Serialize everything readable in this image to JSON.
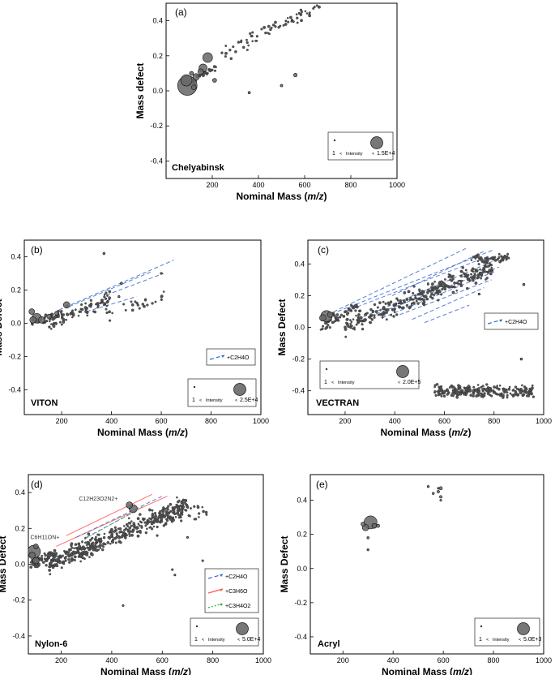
{
  "chart_data": [
    {
      "type": "scatter",
      "panel": "(a)",
      "title": "Chelyabinsk",
      "xlabel": "Nominal Mass (m/z)",
      "ylabel": "Mass defect",
      "xlim": [
        0,
        1000
      ],
      "ylim": [
        -0.5,
        0.5
      ],
      "xticks": [
        200,
        400,
        600,
        800,
        1000
      ],
      "yticks": [
        0.4,
        0.2,
        0.0,
        -0.2,
        -0.4
      ],
      "xtick_labels": [
        "200",
        "400",
        "600",
        "800",
        "1000"
      ],
      "ytick_labels": [
        "0.4",
        "0.2",
        "0.0",
        "-0.2",
        "-0.4"
      ],
      "intensity_legend": {
        "min": "1",
        "max": "1.5E+4",
        "label": "Intensity",
        "lt": "<"
      },
      "clusters": [
        {
          "x": [
            85,
            240
          ],
          "y0": 0.02,
          "slope": 0.0009,
          "spread": 0.035,
          "n": 28
        },
        {
          "x": [
            240,
            670
          ],
          "y0": 0.2,
          "slope": 0.0007,
          "spread": 0.06,
          "n": 70
        }
      ],
      "points": [
        [
          92,
          0.03,
          12
        ],
        [
          88,
          0.06,
          7
        ],
        [
          180,
          0.19,
          6
        ],
        [
          160,
          0.13,
          5
        ],
        [
          130,
          0.08,
          4
        ],
        [
          150,
          0.11,
          3.5
        ],
        [
          210,
          0.06,
          2.5
        ],
        [
          120,
          0.02,
          3
        ],
        [
          560,
          0.09,
          2.2
        ],
        [
          500,
          0.03,
          1.6
        ],
        [
          360,
          -0.01,
          1.5
        ],
        [
          110,
          0.1,
          2.5
        ]
      ],
      "series_lines": []
    },
    {
      "type": "scatter",
      "panel": "(b)",
      "title": "VITON",
      "xlabel": "Nominal Mass (m/z)",
      "ylabel": "Mass Defect",
      "xlim": [
        50,
        1000
      ],
      "ylim": [
        -0.55,
        0.5
      ],
      "xticks": [
        200,
        400,
        600,
        800,
        1000
      ],
      "yticks": [
        0.4,
        0.2,
        0.0,
        -0.2,
        -0.4
      ],
      "xtick_labels": [
        "200",
        "400",
        "600",
        "800",
        "1000"
      ],
      "ytick_labels": [
        "0.4",
        "0.2",
        "0.0",
        "-0.2",
        "-0.4"
      ],
      "series_legend": [
        {
          "name": "+C2H4O",
          "color": "#3a66cc"
        }
      ],
      "intensity_legend": {
        "min": "1",
        "max": "2.5E+4",
        "label": "Intensity",
        "lt": "<"
      },
      "clusters": [
        {
          "x": [
            80,
            200
          ],
          "y0": -0.01,
          "slope": 0.0006,
          "spread": 0.04,
          "n": 30
        },
        {
          "x": [
            150,
            400
          ],
          "y0": 0.0,
          "slope": 0.0006,
          "spread": 0.07,
          "n": 90
        },
        {
          "x": [
            380,
            620
          ],
          "y0": 0.05,
          "slope": 0.0005,
          "spread": 0.05,
          "n": 25
        }
      ],
      "points": [
        [
          100,
          0.03,
          6
        ],
        [
          85,
          0.02,
          4
        ],
        [
          120,
          0.02,
          4
        ],
        [
          80,
          0.07,
          3.5
        ],
        [
          150,
          0.04,
          3
        ],
        [
          220,
          0.11,
          4
        ],
        [
          180,
          0.06,
          2.5
        ],
        [
          370,
          0.42,
          1.4
        ],
        [
          440,
          0.24,
          1.4
        ],
        [
          430,
          0.16,
          1.3
        ],
        [
          600,
          0.3,
          1.3
        ]
      ],
      "series_lines": [
        {
          "color": "#3a66cc",
          "dash": "5,3",
          "from": [
            190,
            0.08
          ],
          "to": [
            650,
            0.38
          ]
        },
        {
          "color": "#3a66cc",
          "dash": "5,3",
          "from": [
            230,
            0.1
          ],
          "to": [
            560,
            0.31
          ]
        },
        {
          "color": "#3a66cc",
          "dash": "5,3",
          "from": [
            300,
            0.07
          ],
          "to": [
            500,
            0.16
          ]
        },
        {
          "color": "#3a66cc",
          "dash": "5,3",
          "from": [
            380,
            0.17
          ],
          "to": [
            610,
            0.3
          ]
        }
      ]
    },
    {
      "type": "scatter",
      "panel": "(c)",
      "title": "VECTRAN",
      "xlabel": "Nominal Mass (m/z)",
      "ylabel": "Mass Defect",
      "xlim": [
        50,
        1000
      ],
      "ylim": [
        -0.55,
        0.55
      ],
      "xticks": [
        200,
        400,
        600,
        800,
        1000
      ],
      "yticks": [
        0.4,
        0.2,
        0.0,
        -0.2,
        -0.4
      ],
      "xtick_labels": [
        "200",
        "400",
        "600",
        "800",
        "1000"
      ],
      "ytick_labels": [
        "0.4",
        "0.2",
        "0.0",
        "-0.2",
        "-0.4"
      ],
      "series_legend": [
        {
          "name": "+C2H4O",
          "color": "#3a66cc"
        }
      ],
      "intensity_legend": {
        "min": "1",
        "max": "2.0E+5",
        "label": "Intensity",
        "lt": "<"
      },
      "clusters": [
        {
          "x": [
            100,
            250
          ],
          "y0": 0.0,
          "slope": 0.0009,
          "spread": 0.05,
          "n": 50
        },
        {
          "x": [
            200,
            800
          ],
          "y0": 0.0,
          "slope": 0.00065,
          "spread": 0.09,
          "n": 300
        },
        {
          "x": [
            700,
            860
          ],
          "y0": 0.43,
          "slope": 0.0001,
          "spread": 0.04,
          "n": 45
        },
        {
          "x": [
            560,
            960
          ],
          "y0": -0.4,
          "slope": -2e-05,
          "spread": 0.05,
          "n": 230
        }
      ],
      "points": [
        [
          125,
          0.07,
          7
        ],
        [
          110,
          0.06,
          4
        ],
        [
          140,
          0.08,
          3.5
        ],
        [
          920,
          0.27,
          1.4
        ],
        [
          910,
          -0.2,
          1.4
        ],
        [
          740,
          0.21,
          1.3
        ]
      ],
      "series_lines": [
        {
          "color": "#3a66cc",
          "dash": "5,3",
          "from": [
            130,
            0.08
          ],
          "to": [
            690,
            0.5
          ]
        },
        {
          "color": "#3a66cc",
          "dash": "5,3",
          "from": [
            170,
            0.1
          ],
          "to": [
            800,
            0.49
          ]
        },
        {
          "color": "#3a66cc",
          "dash": "5,3",
          "from": [
            200,
            0.1
          ],
          "to": [
            780,
            0.45
          ]
        },
        {
          "color": "#3a66cc",
          "dash": "5,3",
          "from": [
            250,
            0.05
          ],
          "to": [
            800,
            0.42
          ]
        },
        {
          "color": "#3a66cc",
          "dash": "5,3",
          "from": [
            300,
            0.07
          ],
          "to": [
            820,
            0.38
          ]
        },
        {
          "color": "#3a66cc",
          "dash": "5,3",
          "from": [
            350,
            0.06
          ],
          "to": [
            800,
            0.35
          ]
        },
        {
          "color": "#3a66cc",
          "dash": "5,3",
          "from": [
            420,
            0.08
          ],
          "to": [
            790,
            0.3
          ]
        },
        {
          "color": "#3a66cc",
          "dash": "5,3",
          "from": [
            470,
            0.05
          ],
          "to": [
            760,
            0.25
          ]
        },
        {
          "color": "#3a66cc",
          "dash": "5,3",
          "from": [
            520,
            0.03
          ],
          "to": [
            700,
            0.14
          ]
        },
        {
          "color": "#3a66cc",
          "dash": "5,3",
          "from": [
            390,
            0.2
          ],
          "to": [
            760,
            0.48
          ]
        }
      ]
    },
    {
      "type": "scatter",
      "panel": "(d)",
      "title": "Nylon-6",
      "xlabel": "Nominal Mass (m/z)",
      "ylabel": "Mass Defect",
      "xlim": [
        70,
        1000
      ],
      "ylim": [
        -0.5,
        0.5
      ],
      "xticks": [
        200,
        400,
        600,
        800,
        1000
      ],
      "yticks": [
        0.4,
        0.2,
        0.0,
        -0.2,
        -0.4
      ],
      "xtick_labels": [
        "200",
        "400",
        "600",
        "800",
        "1000"
      ],
      "ytick_labels": [
        "0.4",
        "0.2",
        "0.0",
        "-0.2",
        "-0.4"
      ],
      "series_legend": [
        {
          "name": "+C2H4O",
          "color": "#3a66cc",
          "dash": "5,3"
        },
        {
          "name": "+C3H6O",
          "color": "#ff5555",
          "dash": ""
        },
        {
          "name": "+C3H4O2",
          "color": "#33aa33",
          "dash": "2,2"
        }
      ],
      "intensity_legend": {
        "min": "1",
        "max": "5.0E+4",
        "label": "Intensity",
        "lt": "<"
      },
      "annotations": [
        {
          "text": "C6H11ON+",
          "x": 78,
          "y": 0.14
        },
        {
          "text": "C12H23O2N2+",
          "x": 270,
          "y": 0.355
        }
      ],
      "clusters": [
        {
          "x": [
            80,
            180
          ],
          "y0": 0.0,
          "slope": 0.0006,
          "spread": 0.05,
          "n": 60
        },
        {
          "x": [
            150,
            700
          ],
          "y0": 0.0,
          "slope": 0.0006,
          "spread": 0.08,
          "n": 420
        },
        {
          "x": [
            560,
            780
          ],
          "y0": 0.26,
          "slope": 0.0002,
          "spread": 0.06,
          "n": 40
        }
      ],
      "points": [
        [
          92,
          0.07,
          8
        ],
        [
          85,
          0.05,
          4
        ],
        [
          100,
          0.02,
          4
        ],
        [
          100,
          0.1,
          3
        ],
        [
          485,
          0.31,
          5
        ],
        [
          470,
          0.33,
          4
        ],
        [
          445,
          -0.23,
          1.2
        ],
        [
          760,
          0.02,
          1.2
        ],
        [
          650,
          -0.06,
          1.2
        ],
        [
          640,
          -0.03,
          1.2
        ],
        [
          700,
          0.15,
          1.2
        ],
        [
          580,
          0.16,
          1.2
        ]
      ],
      "series_lines": [
        {
          "color": "#ff5555",
          "dash": "",
          "from": [
            180,
            0.1
          ],
          "to": [
            620,
            0.38
          ]
        },
        {
          "color": "#ff5555",
          "dash": "",
          "from": [
            220,
            0.16
          ],
          "to": [
            560,
            0.39
          ]
        },
        {
          "color": "#3a66cc",
          "dash": "5,3",
          "from": [
            260,
            0.15
          ],
          "to": [
            600,
            0.38
          ]
        },
        {
          "color": "#3a66cc",
          "dash": "5,3",
          "from": [
            300,
            0.15
          ],
          "to": [
            500,
            0.3
          ]
        },
        {
          "color": "#33aa33",
          "dash": "2,2",
          "from": [
            280,
            0.13
          ],
          "to": [
            520,
            0.32
          ]
        }
      ]
    },
    {
      "type": "scatter",
      "panel": "(e)",
      "title": "Acryl",
      "xlabel": "Nominal Mass (m/z)",
      "ylabel": "Mass Defect",
      "xlim": [
        70,
        1000
      ],
      "ylim": [
        -0.5,
        0.55
      ],
      "xticks": [
        200,
        400,
        600,
        800,
        1000
      ],
      "yticks": [
        0.4,
        0.2,
        0.0,
        -0.2,
        -0.4
      ],
      "xtick_labels": [
        "200",
        "400",
        "600",
        "800",
        "1000"
      ],
      "ytick_labels": [
        "0.4",
        "0.2",
        "0.0",
        "-0.2",
        "-0.4"
      ],
      "intensity_legend": {
        "min": "1",
        "max": "5.0E+3",
        "label": "Intensity",
        "lt": "<"
      },
      "clusters": [],
      "points": [
        [
          310,
          0.27,
          8
        ],
        [
          290,
          0.24,
          4
        ],
        [
          325,
          0.25,
          3
        ],
        [
          280,
          0.26,
          2.5
        ],
        [
          340,
          0.25,
          2
        ],
        [
          300,
          0.18,
          1.4
        ],
        [
          300,
          0.11,
          1.3
        ],
        [
          590,
          0.47,
          2
        ],
        [
          580,
          0.45,
          1.6
        ],
        [
          590,
          0.42,
          1.6
        ],
        [
          560,
          0.44,
          1.4
        ],
        [
          540,
          0.48,
          1.3
        ],
        [
          590,
          0.4,
          1.2
        ],
        [
          580,
          0.47,
          1.2
        ]
      ],
      "series_lines": []
    }
  ]
}
